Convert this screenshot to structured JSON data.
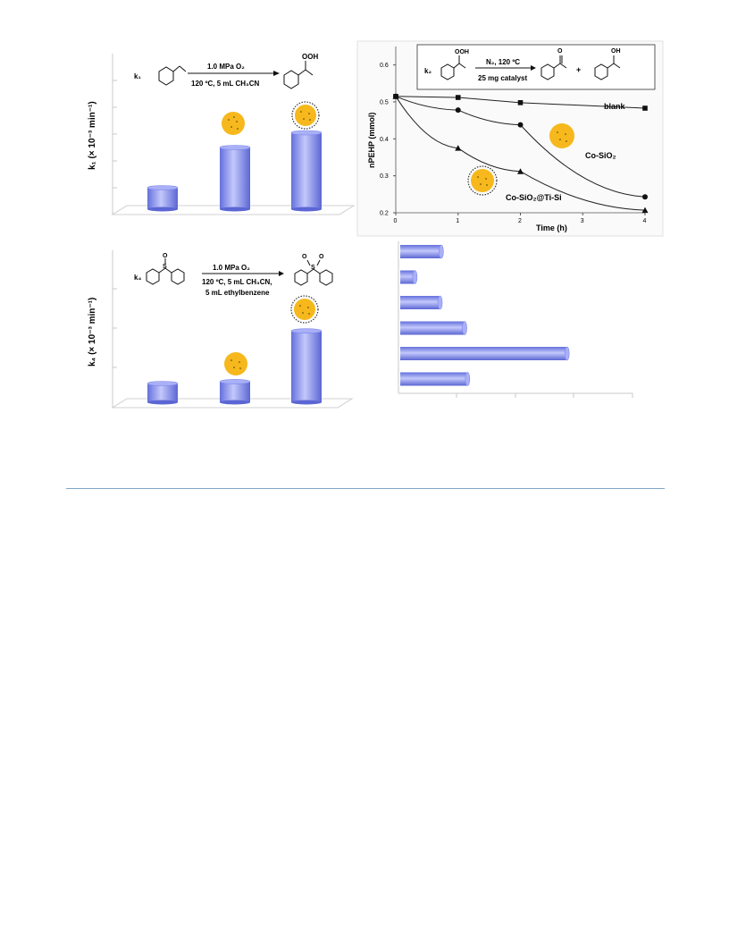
{
  "panel_a": {
    "ylabel": "k₁ (× 10⁻³ min⁻¹)",
    "rate_label": "k₁",
    "reagent": "OOH",
    "conditions_top": "1.0 MPa O₂",
    "conditions_bottom": "120 ºC, 5 mL CH₃CN"
  },
  "panel_b": {
    "rate_label": "k₂",
    "reagent_top": "OOH",
    "conditions_top": "N₂, 120 ºC",
    "conditions_bottom": "25 mg catalyst",
    "product1_label": "O",
    "plus": "+",
    "product2_label": "OH",
    "ylabel": "nPEHP (mmol)",
    "xlabel": "Time (h)",
    "series_label_blank": "blank",
    "series_label_cosio2": "Co-SiO₂",
    "series_label_cosio2_tisi": "Co-SiO₂@Ti-Si"
  },
  "panel_c": {
    "ylabel": "k₄ (× 10⁻³ min⁻¹)",
    "rate_label": "k₄",
    "s_label": "S",
    "o_label": "O",
    "conditions_line1": "1.0 MPa O₂",
    "conditions_line2": "120 ºC, 5 mL CH₃CN,",
    "conditions_line3": "5 mL ethylbenzene"
  },
  "colors": {
    "bar": "#7d88ec",
    "bar_light": "#c3c8fb",
    "particle": "#f6b81c",
    "rule": "#7fa6c8"
  },
  "chart_data": [
    {
      "type": "bar",
      "id": "k1",
      "ylabel": "k₁ (× 10⁻³ min⁻¹)",
      "values": [
        0.8,
        2.3,
        2.85
      ],
      "ylim": [
        0,
        5
      ]
    },
    {
      "type": "line",
      "id": "kinetics",
      "xlabel": "Time (h)",
      "ylabel": "nPEHP (mmol)",
      "xticks": [
        0,
        1,
        2,
        3,
        4
      ],
      "yticks": [
        0.2,
        0.3,
        0.4,
        0.5,
        0.6
      ],
      "xlim": [
        0,
        4
      ],
      "ylim": [
        0.2,
        0.65
      ],
      "series": [
        {
          "name": "blank",
          "marker": "square",
          "x": [
            0,
            1,
            2,
            4
          ],
          "y": [
            0.515,
            0.512,
            0.498,
            0.483
          ]
        },
        {
          "name": "Co-SiO₂",
          "marker": "circle",
          "x": [
            0,
            1,
            2,
            4
          ],
          "y": [
            0.515,
            0.478,
            0.438,
            0.243
          ]
        },
        {
          "name": "Co-SiO₂@Ti-Si",
          "marker": "triangle",
          "x": [
            0,
            1,
            2,
            4
          ],
          "y": [
            0.515,
            0.375,
            0.312,
            0.207
          ]
        }
      ]
    },
    {
      "type": "bar",
      "id": "k4",
      "ylabel": "k₄ (× 10⁻³ min⁻¹)",
      "values": [
        0.5,
        0.55,
        1.9
      ],
      "ylim": [
        0,
        3
      ]
    },
    {
      "type": "bar",
      "id": "horizontal",
      "orientation": "horizontal",
      "values": [
        0.7,
        0.25,
        0.68,
        1.1,
        2.85,
        1.15
      ],
      "xlim": [
        0,
        4
      ]
    }
  ]
}
